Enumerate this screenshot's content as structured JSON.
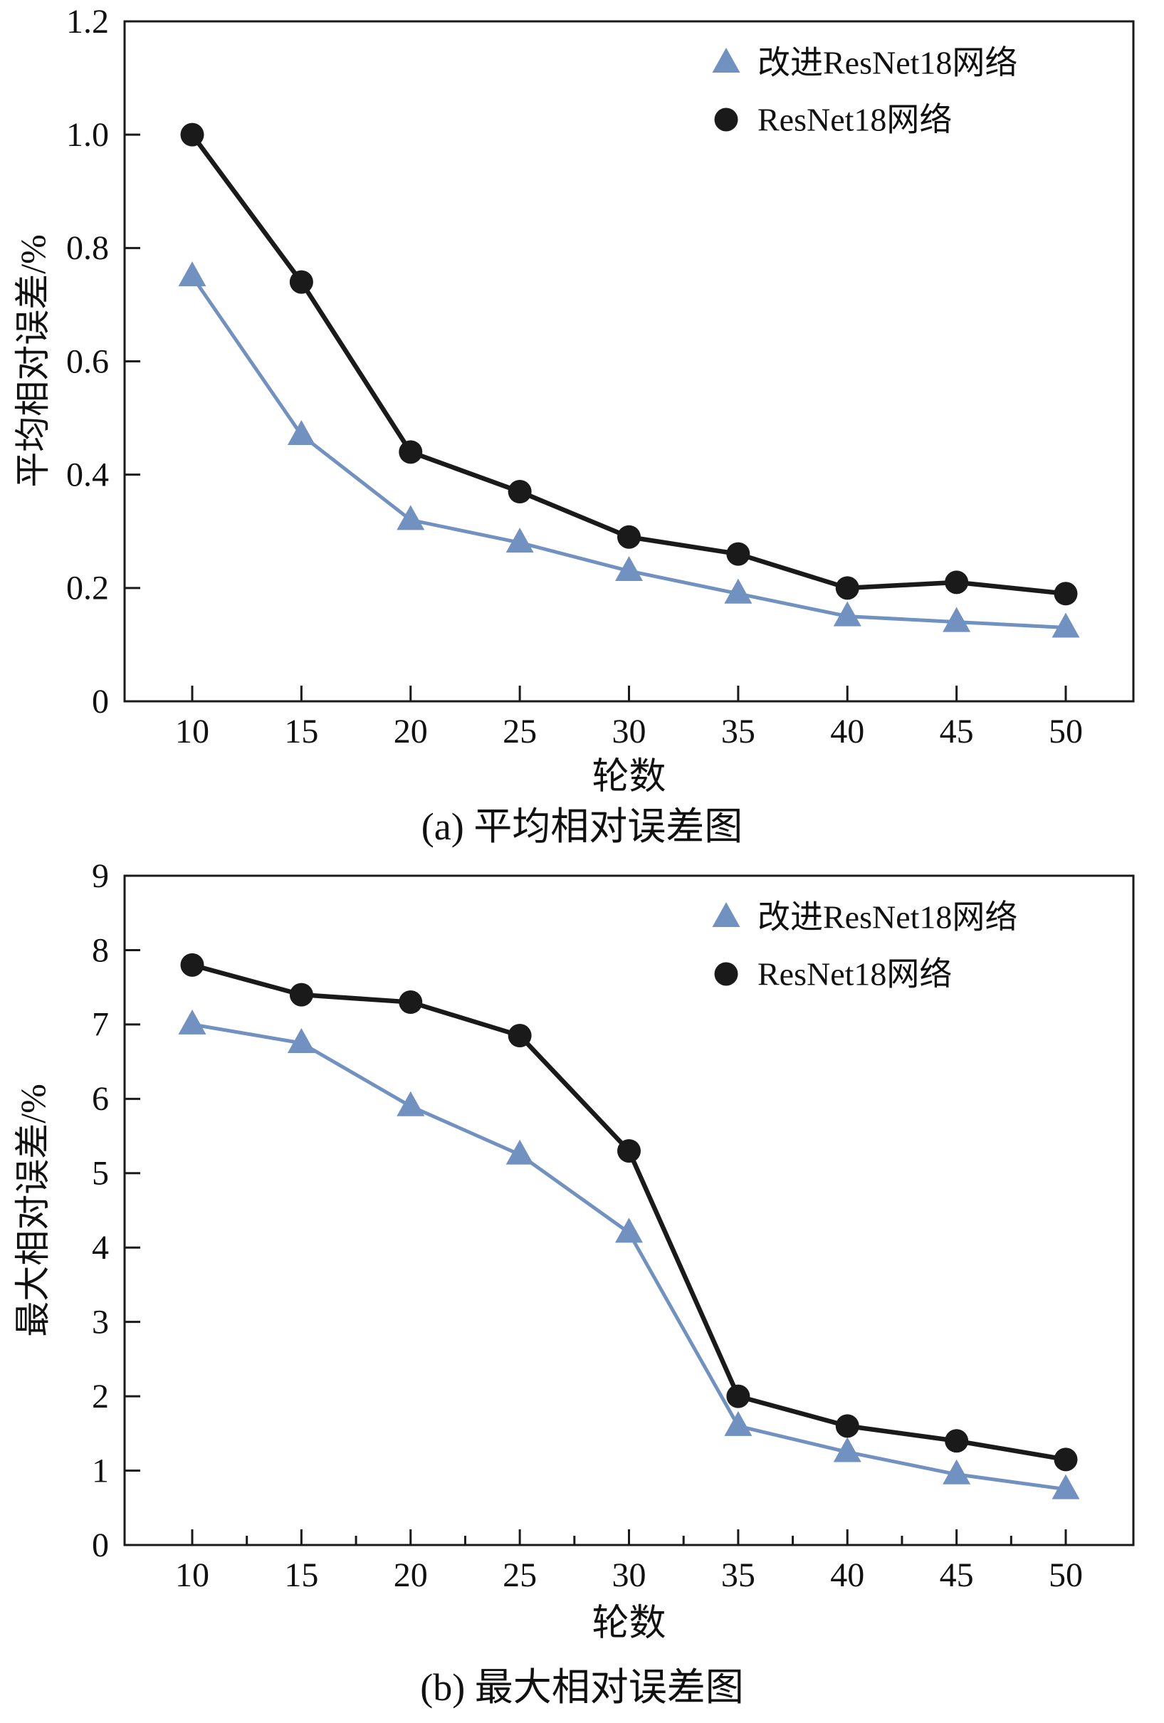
{
  "page": {
    "background": "#ffffff"
  },
  "colors": {
    "improved_series": "#7191c1",
    "baseline_series": "#1a1a1a",
    "axis": "#1a1a1a",
    "text": "#111111"
  },
  "chart_data": [
    {
      "type": "line",
      "caption": "(a) 平均相对误差图",
      "xlabel": "轮数",
      "ylabel": "平均相对误差/%",
      "x": [
        10,
        15,
        20,
        25,
        30,
        35,
        40,
        45,
        50
      ],
      "xtick_labels": [
        "10",
        "15",
        "20",
        "25",
        "30",
        "35",
        "40",
        "45",
        "50"
      ],
      "ylim": [
        0,
        1.2
      ],
      "yticks": [
        0,
        0.2,
        0.4,
        0.6,
        0.8,
        1.0,
        1.2
      ],
      "ytick_labels": [
        "0",
        "0.2",
        "0.4",
        "0.6",
        "0.8",
        "1.0",
        "1.2"
      ],
      "grid": false,
      "minor_xticks": false,
      "legend_position": "top-right",
      "series": [
        {
          "name": "改进ResNet18网络",
          "marker": "triangle",
          "color": "#7191c1",
          "values": [
            0.75,
            0.47,
            0.32,
            0.28,
            0.23,
            0.19,
            0.15,
            0.14,
            0.13
          ]
        },
        {
          "name": "ResNet18网络",
          "marker": "circle",
          "color": "#1a1a1a",
          "values": [
            1.0,
            0.74,
            0.44,
            0.37,
            0.29,
            0.26,
            0.2,
            0.21,
            0.19
          ]
        }
      ]
    },
    {
      "type": "line",
      "caption": "(b) 最大相对误差图",
      "xlabel": "轮数",
      "ylabel": "最大相对误差/%",
      "x": [
        10,
        15,
        20,
        25,
        30,
        35,
        40,
        45,
        50
      ],
      "xtick_labels": [
        "10",
        "15",
        "20",
        "25",
        "30",
        "35",
        "40",
        "45",
        "50"
      ],
      "ylim": [
        0,
        9
      ],
      "yticks": [
        0,
        1,
        2,
        3,
        4,
        5,
        6,
        7,
        8,
        9
      ],
      "ytick_labels": [
        "0",
        "1",
        "2",
        "3",
        "4",
        "5",
        "6",
        "7",
        "8",
        "9"
      ],
      "grid": false,
      "minor_xticks": true,
      "legend_position": "top-right",
      "series": [
        {
          "name": "改进ResNet18网络",
          "marker": "triangle",
          "color": "#7191c1",
          "values": [
            7.0,
            6.75,
            5.9,
            5.25,
            4.2,
            1.6,
            1.25,
            0.95,
            0.75
          ]
        },
        {
          "name": "ResNet18网络",
          "marker": "circle",
          "color": "#1a1a1a",
          "values": [
            7.8,
            7.4,
            7.3,
            6.85,
            5.3,
            2.0,
            1.6,
            1.4,
            1.15
          ]
        }
      ]
    }
  ]
}
